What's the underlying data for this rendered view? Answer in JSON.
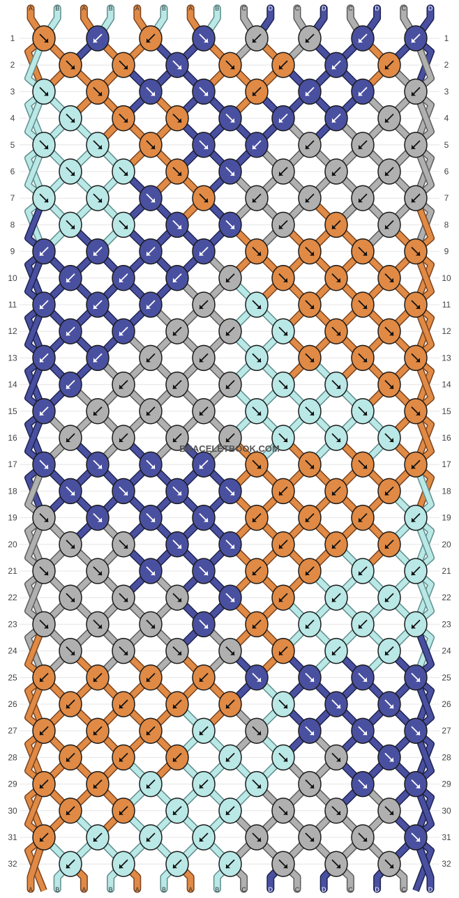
{
  "pattern": {
    "watermark": "BRACELETBOOK.COM",
    "row_numbers": [
      "1",
      "2",
      "3",
      "4",
      "5",
      "6",
      "7",
      "8",
      "9",
      "10",
      "11",
      "12",
      "13",
      "14",
      "15",
      "16",
      "17",
      "18",
      "19",
      "20",
      "21",
      "22",
      "23",
      "24",
      "25",
      "26",
      "27",
      "28",
      "29",
      "30",
      "31",
      "32"
    ],
    "strings_top": [
      "A",
      "B",
      "A",
      "B",
      "A",
      "B",
      "A",
      "B",
      "C",
      "D",
      "C",
      "D",
      "C",
      "D",
      "C",
      "D"
    ],
    "strings_bottom": [
      "A",
      "B",
      "A",
      "B",
      "A",
      "B",
      "A",
      "B",
      "C",
      "D",
      "C",
      "D",
      "C",
      "D",
      "C",
      "D"
    ],
    "colors": {
      "A": "#e08a45",
      "B": "#b9e8e6",
      "C": "#b0b0b0",
      "D": "#4a50a0"
    },
    "knot_grid": [
      "ADADCCDD",
      "AADAADAD",
      "BADDADDC",
      "BAADDDCC",
      "BBADDCCC",
      "BBADCCCC",
      "BBDACCCC",
      "BBDDCACC",
      "DDDDAAAA",
      "DDDCAAAA",
      "DDDCBAAA",
      "DDCCBAAA",
      "DDCCBAAA",
      "DCCCBBAA",
      "DCCCBBBA",
      "CCCCBBBB",
      "DDDDAAAA",
      "DDDDAAAA",
      "CDDDAAAB",
      "CCDDAAAB",
      "CCDDAABB",
      "CCCDABBB",
      "CCCDABBB",
      "CCCCABBB",
      "AAAADDDD",
      "AAAABDDD",
      "AAABCDDD",
      "AAABBCDD",
      "AABBBCDD",
      "AABBCCCD",
      "ABBBCCCD",
      "BBBBCCCC"
    ],
    "arrow_grid": [
      "RLLRLLLL",
      "RRRRLLLL",
      "RRRRLLLL",
      "RRRRLLLL",
      "RRRRLLLL",
      "RRRRLLLL",
      "RRRRLLLL",
      "RRRRLLLL",
      "LLLLRRRR",
      "LLLLRRRR",
      "LLLLRRRR",
      "LLLLRRRR",
      "LLLLRRRR",
      "LLLLRRRR",
      "LLLLRRRR",
      "LLLLRRRR",
      "RRRLRRRL",
      "RRRRLLLL",
      "RRRRLLLL",
      "RRRRLLLL",
      "RRRRLLLL",
      "RRRRLLLL",
      "RRRRLLLL",
      "RRRRLLLL",
      "LLLLRRRR",
      "LLLLRRRR",
      "LLLLRRRR",
      "LLLLRRRR",
      "LLLLRRRR",
      "LLLLRRRR",
      "LLLLRRRR",
      "LLLLRRRR"
    ]
  }
}
